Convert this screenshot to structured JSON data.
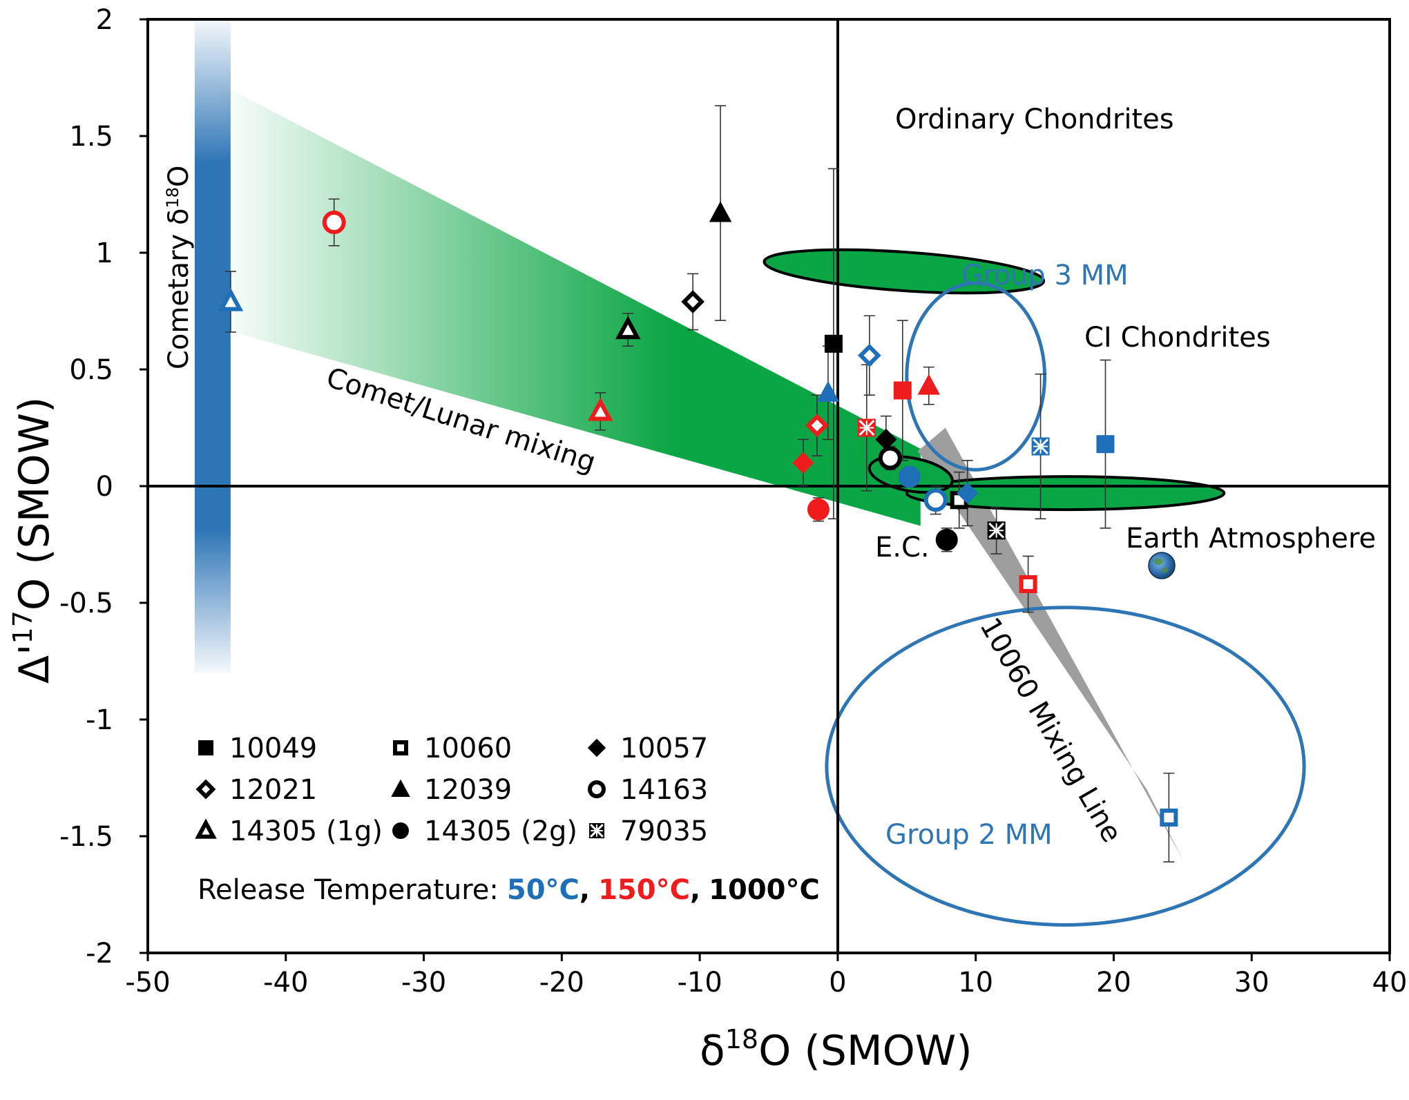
{
  "chart_data": {
    "type": "scatter",
    "title": "",
    "xlabel": "δ18O (SMOW)",
    "ylabel": "Δ'17O (SMOW)",
    "xlim": [
      -50,
      40
    ],
    "ylim": [
      -2,
      2
    ],
    "xticks": [
      -50,
      -40,
      -30,
      -20,
      -10,
      0,
      10,
      20,
      30,
      40
    ],
    "yticks": [
      -2,
      -1.5,
      -1,
      -0.5,
      0,
      0.5,
      1,
      1.5,
      2
    ],
    "x_tick_labels": [
      "-50",
      "-40",
      "-30",
      "-20",
      "-10",
      "0",
      "10",
      "20",
      "30",
      "40"
    ],
    "y_tick_labels": [
      "-2",
      "-1.5",
      "-1",
      "-0.5",
      "0",
      "0.5",
      "1",
      "1.5",
      "2"
    ],
    "xlabel_parts": {
      "delta": "δ",
      "sup": "18",
      "rest": "O (SMOW)"
    },
    "ylabel_parts": {
      "delta": "Δ'",
      "sup": "17",
      "rest": "O (SMOW)"
    },
    "colors": {
      "t50": "#1f6fb8",
      "t150": "#ee1c1c",
      "t1000": "#000000",
      "green": "#0aa544",
      "grey": "#9e9e9e",
      "ellipse_blue": "#2e75b6"
    },
    "series": [
      {
        "sample": "10049",
        "marker": "square",
        "filled": true,
        "temp": "1000",
        "x": -0.3,
        "y": 0.61,
        "err": 0.75
      },
      {
        "sample": "10049",
        "marker": "square",
        "filled": true,
        "temp": "150",
        "x": 4.7,
        "y": 0.41,
        "err": 0.3
      },
      {
        "sample": "10049",
        "marker": "square",
        "filled": true,
        "temp": "50",
        "x": 19.4,
        "y": 0.18,
        "err": 0.36
      },
      {
        "sample": "10060",
        "marker": "square",
        "filled": false,
        "temp": "1000",
        "x": 8.8,
        "y": -0.06,
        "err": 0.12
      },
      {
        "sample": "10060",
        "marker": "square",
        "filled": false,
        "temp": "150",
        "x": 13.8,
        "y": -0.42,
        "err": 0.12
      },
      {
        "sample": "10060",
        "marker": "square",
        "filled": false,
        "temp": "50",
        "x": 24.0,
        "y": -1.42,
        "err": 0.19
      },
      {
        "sample": "10057",
        "marker": "diamond",
        "filled": true,
        "temp": "1000",
        "x": 3.5,
        "y": 0.2,
        "err": 0.1
      },
      {
        "sample": "10057",
        "marker": "diamond",
        "filled": true,
        "temp": "150",
        "x": -2.5,
        "y": 0.1,
        "err": 0.1
      },
      {
        "sample": "10057",
        "marker": "diamond",
        "filled": true,
        "temp": "50",
        "x": 9.4,
        "y": -0.03,
        "err": 0.14
      },
      {
        "sample": "12021",
        "marker": "diamond",
        "filled": false,
        "temp": "1000",
        "x": -10.5,
        "y": 0.79,
        "err": 0.12
      },
      {
        "sample": "12021",
        "marker": "diamond",
        "filled": false,
        "temp": "150",
        "x": -1.5,
        "y": 0.26,
        "err": 0.13
      },
      {
        "sample": "12021",
        "marker": "diamond",
        "filled": false,
        "temp": "50",
        "x": 2.3,
        "y": 0.56,
        "err": 0.17
      },
      {
        "sample": "12039",
        "marker": "triangle",
        "filled": true,
        "temp": "1000",
        "x": -8.5,
        "y": 1.17,
        "err": 0.46
      },
      {
        "sample": "12039",
        "marker": "triangle",
        "filled": true,
        "temp": "150",
        "x": 6.6,
        "y": 0.43,
        "err": 0.08
      },
      {
        "sample": "12039",
        "marker": "triangle",
        "filled": true,
        "temp": "50",
        "x": -0.7,
        "y": 0.4,
        "err": 0.2
      },
      {
        "sample": "14163",
        "marker": "circle",
        "filled": false,
        "temp": "1000",
        "x": 3.8,
        "y": 0.12,
        "err": 0.05
      },
      {
        "sample": "14163",
        "marker": "circle",
        "filled": false,
        "temp": "150",
        "x": -36.5,
        "y": 1.13,
        "err": 0.1
      },
      {
        "sample": "14163",
        "marker": "circle",
        "filled": false,
        "temp": "50",
        "x": 7.1,
        "y": -0.06,
        "err": 0.06
      },
      {
        "sample": "14305 (1g)",
        "marker": "triangle",
        "filled": false,
        "temp": "1000",
        "x": -15.2,
        "y": 0.67,
        "err": 0.07
      },
      {
        "sample": "14305 (1g)",
        "marker": "triangle",
        "filled": false,
        "temp": "150",
        "x": -17.2,
        "y": 0.32,
        "err": 0.08
      },
      {
        "sample": "14305 (1g)",
        "marker": "triangle",
        "filled": false,
        "temp": "50",
        "x": -44.0,
        "y": 0.79,
        "err": 0.13
      },
      {
        "sample": "14305 (2g)",
        "marker": "circle",
        "filled": true,
        "temp": "1000",
        "x": 7.9,
        "y": -0.23,
        "err": 0.05
      },
      {
        "sample": "14305 (2g)",
        "marker": "circle",
        "filled": true,
        "temp": "150",
        "x": -1.4,
        "y": -0.1,
        "err": 0.05
      },
      {
        "sample": "14305 (2g)",
        "marker": "circle",
        "filled": true,
        "temp": "50",
        "x": 5.2,
        "y": 0.04,
        "err": 0.0
      },
      {
        "sample": "79035",
        "marker": "xsquare",
        "filled": true,
        "temp": "1000",
        "x": 11.5,
        "y": -0.19,
        "err": 0.1
      },
      {
        "sample": "79035",
        "marker": "xsquare",
        "filled": true,
        "temp": "150",
        "x": 2.1,
        "y": 0.25,
        "err": 0.27
      },
      {
        "sample": "79035",
        "marker": "xsquare",
        "filled": true,
        "temp": "50",
        "x": 14.7,
        "y": 0.17,
        "err": 0.31
      }
    ],
    "regions": [
      {
        "label": "Ordinary Chondrites",
        "shape": "ellipse",
        "fill": "green",
        "cx": 4.8,
        "cy": 0.92,
        "rx": 1.4,
        "ry": 0.6,
        "angle_deg": 86
      },
      {
        "label": "CI Chondrites",
        "shape": "ellipse",
        "fill": "green",
        "cx": 16.5,
        "cy": -0.03,
        "rx": 1.2,
        "ry": 0.68,
        "angle_deg": 90
      },
      {
        "label": "E.C.",
        "shape": "ellipse",
        "fill": "green",
        "cx": 5.3,
        "cy": 0.05,
        "rx": 1.2,
        "ry": 0.18,
        "angle_deg": 80
      },
      {
        "label": "Group 3 MM",
        "shape": "ellipse",
        "fill": "none",
        "cx": 10.0,
        "cy": 0.47,
        "rx": 5.0,
        "ry": 0.4
      },
      {
        "label": "Group 2 MM",
        "shape": "ellipse",
        "fill": "none",
        "cx": 16.5,
        "cy": -1.2,
        "rx": 17.3,
        "ry": 0.68
      }
    ],
    "bands": [
      {
        "label": "Comet/Lunar mixing",
        "polygon": [
          [
            -45,
            1.73
          ],
          [
            -45,
            0.68
          ],
          [
            6,
            -0.17
          ],
          [
            6,
            0.16
          ]
        ]
      },
      {
        "label": "10060 Mixing Line",
        "polygon": [
          [
            5.8,
            0.15
          ],
          [
            7.8,
            0.25
          ],
          [
            25,
            -1.6
          ],
          [
            22.4,
            -1.3
          ]
        ]
      },
      {
        "label": "Cometary δ18O",
        "x_range": [
          -46.6,
          -44.0
        ],
        "y_range": [
          -0.8,
          2.0
        ]
      }
    ],
    "annotations": {
      "ordinary": "Ordinary Chondrites",
      "ci": "CI Chondrites",
      "group3": "Group 3 MM",
      "group2": "Group 2 MM",
      "ec": "E.C.",
      "earth": "Earth Atmosphere",
      "comet_lunar": "Comet/Lunar mixing",
      "mixing_line": "10060 Mixing Line",
      "cometary": "Cometary δ",
      "cometary_sup": "18",
      "cometary_rest": "O"
    },
    "legend": {
      "items": [
        {
          "label": "10049",
          "marker": "square",
          "filled": true
        },
        {
          "label": "10060",
          "marker": "square",
          "filled": false
        },
        {
          "label": "10057",
          "marker": "diamond",
          "filled": true
        },
        {
          "label": "12021",
          "marker": "diamond",
          "filled": false
        },
        {
          "label": "12039",
          "marker": "triangle",
          "filled": true
        },
        {
          "label": "14163",
          "marker": "circle",
          "filled": false
        },
        {
          "label": "14305 (1g)",
          "marker": "triangle",
          "filled": false
        },
        {
          "label": "14305 (2g)",
          "marker": "circle",
          "filled": true
        },
        {
          "label": "79035",
          "marker": "xsquare",
          "filled": true
        }
      ],
      "temperature_label": "Release Temperature:",
      "temp_50": "50°C",
      "temp_150": "150°C",
      "temp_1000": "1000°C",
      "sep1": ",",
      "sep2": ","
    }
  }
}
